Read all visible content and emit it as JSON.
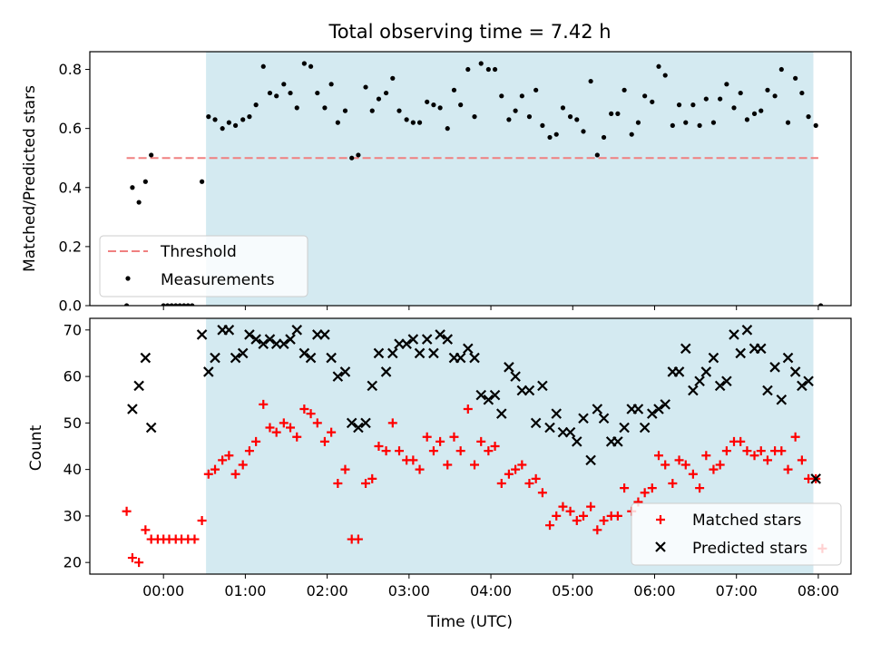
{
  "chart_data": {
    "title": "Total observing time = 7.42 h",
    "xlabel": "Time (UTC)",
    "x_unit": "hours",
    "xlim": [
      -0.9,
      8.4
    ],
    "x_ticks": [
      0,
      1,
      2,
      3,
      4,
      5,
      6,
      7,
      8
    ],
    "x_tick_labels": [
      "00:00",
      "01:00",
      "02:00",
      "03:00",
      "04:00",
      "05:00",
      "06:00",
      "07:00",
      "08:00"
    ],
    "shaded_span": [
      0.52,
      7.94
    ],
    "shade_color": "#d4eaf1",
    "panels": [
      {
        "type": "scatter",
        "ylabel": "Matched/Predicted stars",
        "ylim": [
          0,
          0.86
        ],
        "y_ticks": [
          0.0,
          0.2,
          0.4,
          0.6,
          0.8
        ],
        "y_tick_labels": [
          "0.0",
          "0.2",
          "0.4",
          "0.6",
          "0.8"
        ],
        "legend_position": "lower-left",
        "threshold": {
          "name": "Threshold",
          "value": 0.5,
          "x_range": [
            -0.45,
            8.0
          ],
          "color": "#f08080"
        },
        "series": [
          {
            "name": "Measurements",
            "color": "#000000",
            "x": [
              -0.45,
              -0.38,
              -0.3,
              -0.22,
              -0.15,
              0.0,
              0.05,
              0.1,
              0.15,
              0.2,
              0.25,
              0.3,
              0.35,
              0.47,
              0.55,
              0.63,
              0.72,
              0.8,
              0.88,
              0.97,
              1.05,
              1.13,
              1.22,
              1.3,
              1.38,
              1.47,
              1.55,
              1.63,
              1.72,
              1.8,
              1.88,
              1.97,
              2.05,
              2.13,
              2.22,
              2.3,
              2.38,
              2.47,
              2.55,
              2.63,
              2.72,
              2.8,
              2.88,
              2.97,
              3.05,
              3.13,
              3.22,
              3.3,
              3.38,
              3.47,
              3.55,
              3.63,
              3.72,
              3.8,
              3.88,
              3.97,
              4.05,
              4.13,
              4.22,
              4.3,
              4.38,
              4.47,
              4.55,
              4.63,
              4.72,
              4.8,
              4.88,
              4.97,
              5.05,
              5.13,
              5.22,
              5.3,
              5.38,
              5.47,
              5.55,
              5.63,
              5.72,
              5.8,
              5.88,
              5.97,
              6.05,
              6.13,
              6.22,
              6.3,
              6.38,
              6.47,
              6.55,
              6.63,
              6.72,
              6.8,
              6.88,
              6.97,
              7.05,
              7.13,
              7.22,
              7.3,
              7.38,
              7.47,
              7.55,
              7.63,
              7.72,
              7.8,
              7.88,
              7.97,
              8.03
            ],
            "y": [
              0.0,
              0.4,
              0.35,
              0.42,
              0.51,
              0.0,
              0.0,
              0.0,
              0.0,
              0.0,
              0.0,
              0.0,
              0.0,
              0.42,
              0.64,
              0.63,
              0.6,
              0.62,
              0.61,
              0.63,
              0.64,
              0.68,
              0.81,
              0.72,
              0.71,
              0.75,
              0.72,
              0.67,
              0.82,
              0.81,
              0.72,
              0.67,
              0.75,
              0.62,
              0.66,
              0.5,
              0.51,
              0.74,
              0.66,
              0.7,
              0.72,
              0.77,
              0.66,
              0.63,
              0.62,
              0.62,
              0.69,
              0.68,
              0.67,
              0.6,
              0.73,
              0.68,
              0.8,
              0.64,
              0.82,
              0.8,
              0.8,
              0.71,
              0.63,
              0.66,
              0.71,
              0.64,
              0.73,
              0.61,
              0.57,
              0.58,
              0.67,
              0.64,
              0.63,
              0.59,
              0.76,
              0.51,
              0.57,
              0.65,
              0.65,
              0.73,
              0.58,
              0.62,
              0.71,
              0.69,
              0.81,
              0.78,
              0.61,
              0.68,
              0.62,
              0.68,
              0.61,
              0.7,
              0.62,
              0.7,
              0.75,
              0.67,
              0.72,
              0.63,
              0.65,
              0.66,
              0.73,
              0.71,
              0.8,
              0.62,
              0.77,
              0.72,
              0.64,
              0.61,
              0.0
            ]
          }
        ]
      },
      {
        "type": "scatter",
        "ylabel": "Count",
        "ylim": [
          17.5,
          72.5
        ],
        "y_ticks": [
          20,
          30,
          40,
          50,
          60,
          70
        ],
        "y_tick_labels": [
          "20",
          "30",
          "40",
          "50",
          "60",
          "70"
        ],
        "legend_position": "lower-right",
        "series": [
          {
            "name": "Matched stars",
            "color": "#ff0000",
            "marker": "+",
            "x": [
              -0.45,
              -0.38,
              -0.3,
              -0.22,
              -0.15,
              -0.07,
              0.0,
              0.07,
              0.15,
              0.22,
              0.3,
              0.38,
              0.47,
              0.55,
              0.63,
              0.72,
              0.8,
              0.88,
              0.97,
              1.05,
              1.13,
              1.22,
              1.3,
              1.38,
              1.47,
              1.55,
              1.63,
              1.72,
              1.8,
              1.88,
              1.97,
              2.05,
              2.13,
              2.22,
              2.3,
              2.38,
              2.47,
              2.55,
              2.63,
              2.72,
              2.8,
              2.88,
              2.97,
              3.05,
              3.13,
              3.22,
              3.3,
              3.38,
              3.47,
              3.55,
              3.63,
              3.72,
              3.8,
              3.88,
              3.97,
              4.05,
              4.13,
              4.22,
              4.3,
              4.38,
              4.47,
              4.55,
              4.63,
              4.72,
              4.8,
              4.88,
              4.97,
              5.05,
              5.13,
              5.22,
              5.3,
              5.38,
              5.47,
              5.55,
              5.63,
              5.72,
              5.8,
              5.88,
              5.97,
              6.05,
              6.13,
              6.22,
              6.3,
              6.38,
              6.47,
              6.55,
              6.63,
              6.72,
              6.8,
              6.88,
              6.97,
              7.05,
              7.13,
              7.22,
              7.3,
              7.38,
              7.47,
              7.55,
              7.63,
              7.72,
              7.8,
              7.88,
              7.97,
              8.05
            ],
            "y": [
              31,
              21,
              20,
              27,
              25,
              25,
              25,
              25,
              25,
              25,
              25,
              25,
              29,
              39,
              40,
              42,
              43,
              39,
              41,
              44,
              46,
              54,
              49,
              48,
              50,
              49,
              47,
              53,
              52,
              50,
              46,
              48,
              37,
              40,
              25,
              25,
              37,
              38,
              45,
              44,
              50,
              44,
              42,
              42,
              40,
              47,
              44,
              46,
              41,
              47,
              44,
              53,
              41,
              46,
              44,
              45,
              37,
              39,
              40,
              41,
              37,
              38,
              35,
              28,
              30,
              32,
              31,
              29,
              30,
              32,
              27,
              29,
              30,
              30,
              36,
              31,
              33,
              35,
              36,
              43,
              41,
              37,
              42,
              41,
              39,
              36,
              43,
              40,
              41,
              44,
              46,
              46,
              44,
              43,
              44,
              42,
              44,
              44,
              40,
              47,
              42,
              38,
              38,
              23
            ]
          },
          {
            "name": "Predicted stars",
            "color": "#000000",
            "marker": "x",
            "x": [
              -0.38,
              -0.3,
              -0.22,
              -0.15,
              0.47,
              0.55,
              0.63,
              0.72,
              0.8,
              0.88,
              0.97,
              1.05,
              1.13,
              1.22,
              1.3,
              1.38,
              1.47,
              1.55,
              1.63,
              1.72,
              1.8,
              1.88,
              1.97,
              2.05,
              2.13,
              2.22,
              2.3,
              2.38,
              2.47,
              2.55,
              2.63,
              2.72,
              2.8,
              2.88,
              2.97,
              3.05,
              3.13,
              3.22,
              3.3,
              3.38,
              3.47,
              3.55,
              3.63,
              3.72,
              3.8,
              3.88,
              3.97,
              4.05,
              4.13,
              4.22,
              4.3,
              4.38,
              4.47,
              4.55,
              4.63,
              4.72,
              4.8,
              4.88,
              4.97,
              5.05,
              5.13,
              5.22,
              5.3,
              5.38,
              5.47,
              5.55,
              5.63,
              5.72,
              5.8,
              5.88,
              5.97,
              6.05,
              6.13,
              6.22,
              6.3,
              6.38,
              6.47,
              6.55,
              6.63,
              6.72,
              6.8,
              6.88,
              6.97,
              7.05,
              7.13,
              7.22,
              7.3,
              7.38,
              7.47,
              7.55,
              7.63,
              7.72,
              7.8,
              7.88,
              7.97
            ],
            "y": [
              53,
              58,
              64,
              49,
              69,
              61,
              64,
              70,
              70,
              64,
              65,
              69,
              68,
              67,
              68,
              67,
              67,
              68,
              70,
              65,
              64,
              69,
              69,
              64,
              60,
              61,
              50,
              49,
              50,
              58,
              65,
              61,
              65,
              67,
              67,
              68,
              65,
              68,
              65,
              69,
              68,
              64,
              64,
              66,
              64,
              56,
              55,
              56,
              52,
              62,
              60,
              57,
              57,
              50,
              58,
              49,
              52,
              48,
              48,
              46,
              51,
              42,
              53,
              51,
              46,
              46,
              49,
              53,
              53,
              49,
              52,
              53,
              54,
              61,
              61,
              66,
              57,
              59,
              61,
              64,
              58,
              59,
              69,
              65,
              70,
              66,
              66,
              57,
              62,
              55,
              64,
              61,
              58,
              59,
              38
            ]
          }
        ]
      }
    ]
  }
}
